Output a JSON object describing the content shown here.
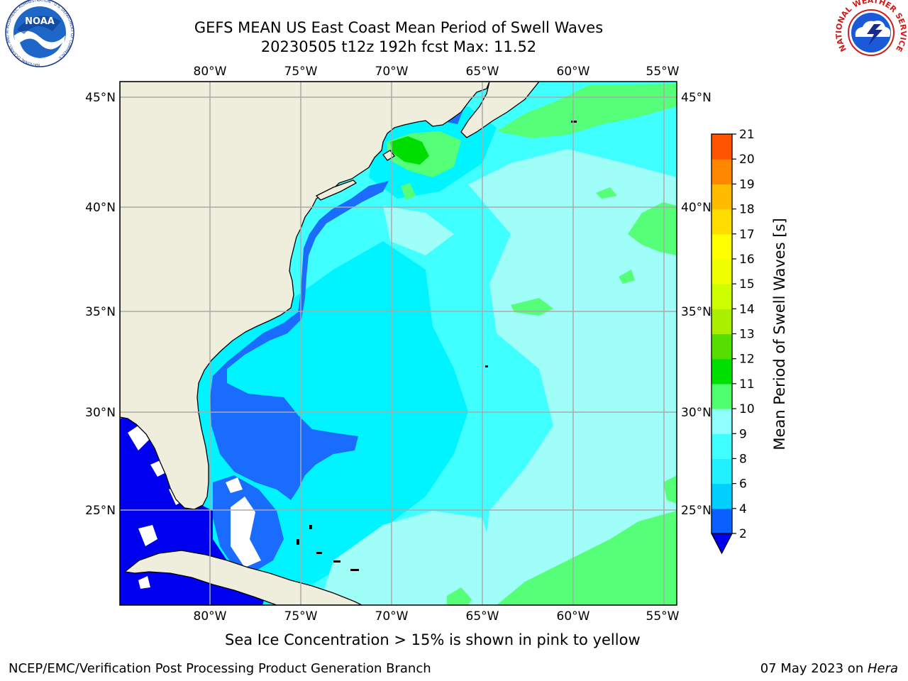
{
  "title": "GEFS MEAN US East Coast Mean Period of Swell Waves",
  "subtitle": "20230505 t12z 192h fcst   Max: 11.52",
  "colorbar": {
    "label": "Mean Period of Swell Waves [s]",
    "ticks": [
      "2",
      "4",
      "6",
      "8",
      "9",
      "10",
      "11",
      "12",
      "13",
      "14",
      "15",
      "16",
      "17",
      "18",
      "19",
      "20",
      "21"
    ],
    "colors": [
      "#0a60ff",
      "#00cfff",
      "#20f0ff",
      "#40ffff",
      "#90ffff",
      "#50ff70",
      "#00e000",
      "#55dd00",
      "#aaee00",
      "#ccff00",
      "#eeff00",
      "#ffff00",
      "#ffdd00",
      "#ffbb00",
      "#ff8800",
      "#ff5500",
      "#ff2200",
      "#ff0000"
    ],
    "under_color": "#0000f0",
    "extend": "min"
  },
  "map": {
    "lon_labels": [
      "80°W",
      "75°W",
      "70°W",
      "65°W",
      "60°W",
      "55°W"
    ],
    "lat_labels": [
      "45°N",
      "40°N",
      "35°N",
      "30°N",
      "25°N"
    ],
    "lon_range": [
      -85,
      -54
    ],
    "lat_range": [
      20.5,
      46
    ],
    "land_color": "#efeedd",
    "nodata_color": "#ffffff"
  },
  "logos": {
    "left": {
      "text": "NOAA",
      "ring_text": "NATIONAL OCEANIC AND ATMOSPHERIC ADMINISTRATION · U.S. DEPARTMENT OF COMMERCE"
    },
    "right": {
      "ring_text": "NATIONAL WEATHER SERVICE"
    }
  },
  "footer": {
    "note": "Sea Ice Concentration > 15% is shown in pink to yellow",
    "credit": "NCEP/EMC/Verification Post Processing Product Generation Branch",
    "date": "07 May 2023 on ",
    "machine": "Hera"
  }
}
